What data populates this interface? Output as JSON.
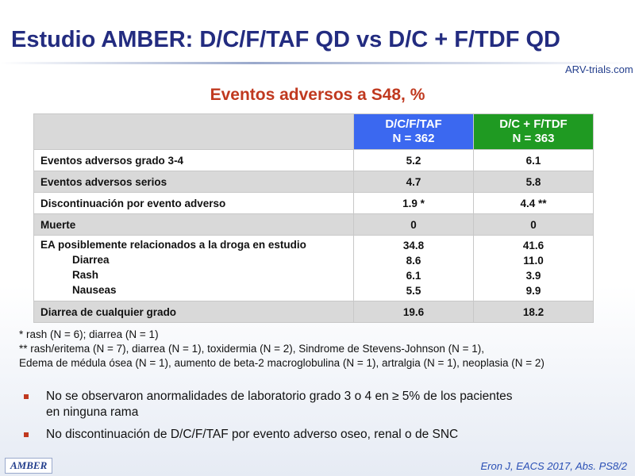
{
  "header": {
    "title": "Estudio AMBER: D/C/F/TAF QD vs D/C + F/TDF QD",
    "logo": "ARV-trials.com",
    "subtitle": "Eventos adversos a S48, %"
  },
  "table": {
    "columns": [
      "",
      [
        "D/C/F/TAF",
        "N = 362"
      ],
      [
        "D/C + F/TDF",
        "N = 363"
      ]
    ],
    "rows": [
      [
        "Eventos adversos grado 3-4",
        "5.2",
        "6.1"
      ],
      [
        "Eventos adversos serios",
        "4.7",
        "5.8"
      ],
      [
        "Discontinuación por evento adverso",
        "1.9 *",
        "4.4 **"
      ],
      [
        "Muerte",
        "0",
        "0"
      ],
      [
        [
          "EA posiblemente relacionados a la droga en estudio",
          "Diarrea",
          "Rash",
          "Nauseas"
        ],
        [
          "34.8",
          "8.6",
          "6.1",
          "5.5"
        ],
        [
          "41.6",
          "11.0",
          "3.9",
          "9.9"
        ]
      ],
      [
        "Diarrea de cualquier grado",
        "19.6",
        "18.2"
      ]
    ]
  },
  "footnotes": [
    "* rash (N = 6); diarrea (N = 1)",
    "** rash/eritema (N = 7), diarrea (N = 1), toxidermia (N = 2), Sindrome de Stevens-Johnson (N = 1),",
    "Edema de médula ósea (N = 1), aumento de beta-2 macroglobulina (N = 1), artralgia (N = 1), neoplasia (N = 2)"
  ],
  "bullets": [
    [
      "No se observaron anormalidades  de laboratorio grado 3 o 4 en ≥ 5% de los pacientes",
      "en ninguna  rama"
    ],
    [
      "No discontinuación de D/C/F/TAF  por evento adverso oseo, renal o de SNC"
    ]
  ],
  "footer": {
    "study": "AMBER",
    "reference": "Eron J, EACS 2017, Abs. PS8/2"
  }
}
